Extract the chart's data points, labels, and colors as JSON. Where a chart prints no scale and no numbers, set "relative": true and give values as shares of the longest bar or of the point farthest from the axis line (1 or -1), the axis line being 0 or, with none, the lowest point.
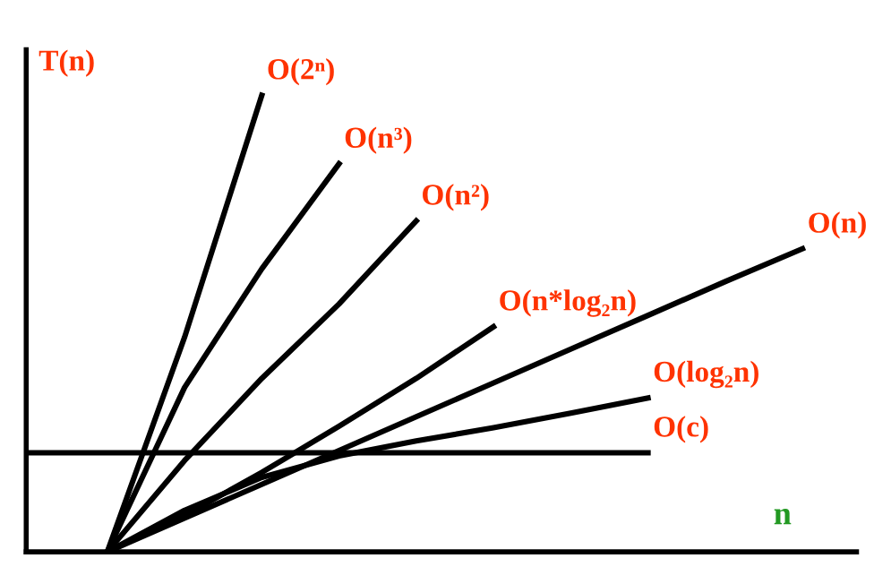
{
  "chart_data": {
    "type": "line",
    "relative": true,
    "ylabel": "T(n)",
    "xlabel": "n",
    "categories": [
      null,
      null,
      null,
      null,
      null,
      null,
      null,
      null,
      null,
      null,
      null
    ],
    "series": [
      {
        "name": "O(2ⁿ)",
        "color": "#000000",
        "values": [
          null,
          0,
          0.47,
          1,
          null,
          null,
          null,
          null,
          null,
          null,
          null
        ]
      },
      {
        "name": "O(n³)",
        "color": "#000000",
        "values": [
          null,
          0,
          0.36,
          0.62,
          0.85,
          null,
          null,
          null,
          null,
          null,
          null
        ]
      },
      {
        "name": "O(n²)",
        "color": "#000000",
        "values": [
          null,
          0,
          0.2,
          0.38,
          0.543,
          0.725,
          null,
          null,
          null,
          null,
          null
        ]
      },
      {
        "name": "O(n*log₂n)",
        "color": "#000000",
        "values": [
          null,
          0,
          0.08,
          0.174,
          0.275,
          0.38,
          0.493,
          null,
          null,
          null,
          null
        ]
      },
      {
        "name": "O(n)",
        "color": "#000000",
        "values": [
          null,
          0,
          0.074,
          0.148,
          0.222,
          0.296,
          0.37,
          0.444,
          0.518,
          0.592,
          0.664
        ]
      },
      {
        "name": "O(log₂n)",
        "color": "#000000",
        "values": [
          null,
          0,
          0.091,
          0.163,
          0.21,
          0.243,
          0.272,
          0.304,
          0.337,
          null,
          null
        ]
      },
      {
        "name": "O(c)",
        "color": "#000000",
        "values": [
          0.217,
          0.217,
          0.217,
          0.217,
          0.217,
          0.217,
          0.217,
          0.217,
          0.217,
          null,
          null
        ]
      }
    ],
    "grid": false,
    "legend": false,
    "marker": "none",
    "line_style": "solid"
  }
}
